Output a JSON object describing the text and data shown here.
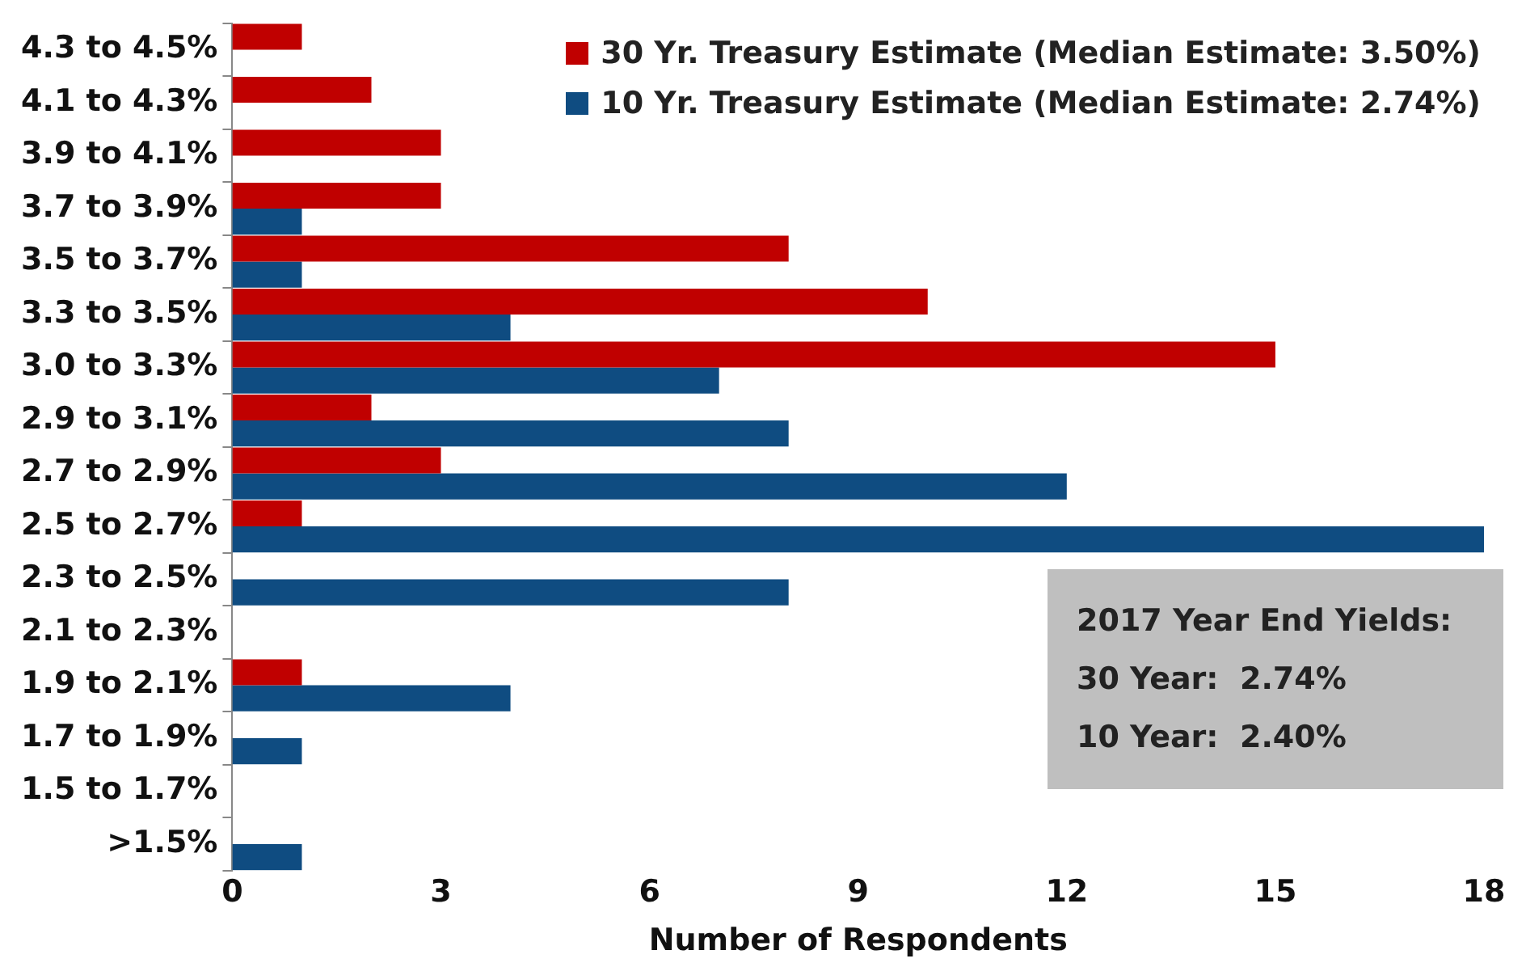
{
  "chart_data": {
    "type": "bar",
    "orientation": "horizontal",
    "xlabel": "Number of Respondents",
    "categories": [
      "4.3 to 4.5%",
      "4.1 to 4.3%",
      "3.9 to 4.1%",
      "3.7 to 3.9%",
      "3.5 to 3.7%",
      "3.3 to 3.5%",
      "3.0 to 3.3%",
      "2.9 to 3.1%",
      "2.7 to 2.9%",
      "2.5 to 2.7%",
      "2.3 to 2.5%",
      "2.1 to 2.3%",
      "1.9 to 2.1%",
      "1.7 to 1.9%",
      "1.5 to 1.7%",
      ">1.5%"
    ],
    "series": [
      {
        "name": "30 Yr. Treasury Estimate (Median Estimate: 3.50%)",
        "color": "#c00000",
        "values": [
          1,
          2,
          3,
          3,
          8,
          10,
          15,
          2,
          3,
          1,
          0,
          0,
          1,
          0,
          0,
          0
        ]
      },
      {
        "name": "10 Yr. Treasury Estimate (Median Estimate: 2.74%)",
        "color": "#0f4c81",
        "values": [
          0,
          0,
          0,
          1,
          1,
          4,
          7,
          8,
          12,
          18,
          8,
          0,
          4,
          1,
          0,
          1
        ]
      }
    ],
    "xlim": [
      0,
      18
    ],
    "xticks": [
      0,
      3,
      6,
      9,
      12,
      15,
      18
    ],
    "grid": false,
    "legend": "top right",
    "annotations": [
      "2017 Year End Yields:",
      "30 Year:  2.74%",
      "10 Year:  2.40%"
    ]
  }
}
